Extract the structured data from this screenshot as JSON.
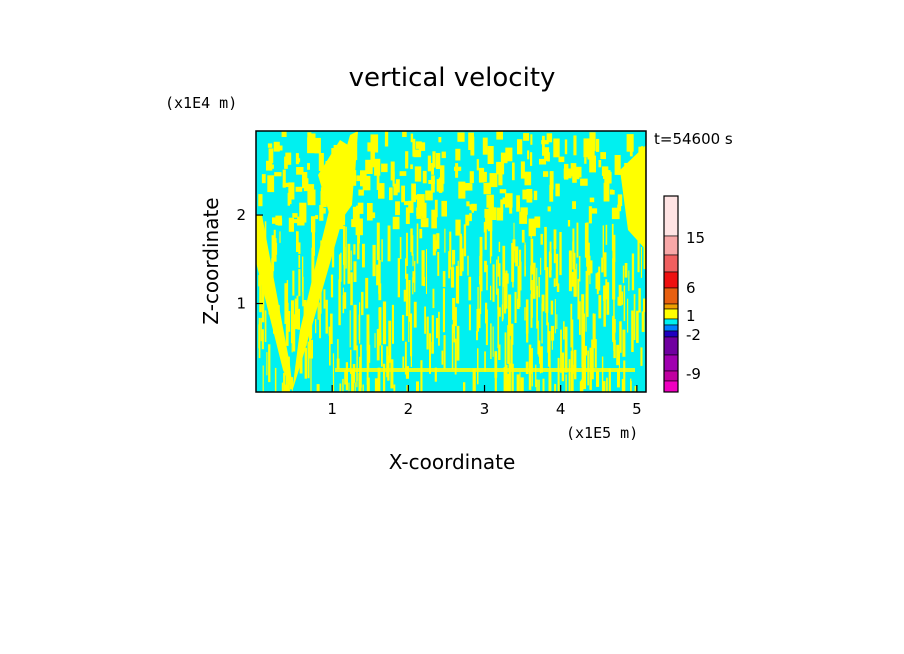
{
  "chart_data": {
    "type": "heatmap",
    "title": "vertical velocity",
    "xlabel": "X-coordinate",
    "ylabel": "Z-coordinate",
    "x_unit": "(x1E5 m)",
    "y_unit": "(x1E4 m)",
    "time_label": "t=54600 s",
    "x_ticks": [
      1,
      2,
      3,
      4,
      5
    ],
    "y_ticks": [
      1,
      2
    ],
    "xlim": [
      0,
      5.12
    ],
    "ylim": [
      0,
      2.95
    ],
    "colorbar": {
      "tick_labels": [
        "15",
        "6",
        "1",
        "-2",
        "-9"
      ],
      "tick_values": [
        15,
        6,
        1,
        -2,
        -9
      ],
      "colors_top_to_bottom": [
        "#ffe4e4",
        "#f8a8a8",
        "#f06060",
        "#ee1010",
        "#e86010",
        "#f0a000",
        "#ffff00",
        "#00f0f0",
        "#0080ff",
        "#2000c0",
        "#7000a0",
        "#a000b0",
        "#c000a0",
        "#f000c0"
      ]
    },
    "colors": {
      "positive": "#ffff00",
      "negative": "#00f0f0"
    }
  }
}
